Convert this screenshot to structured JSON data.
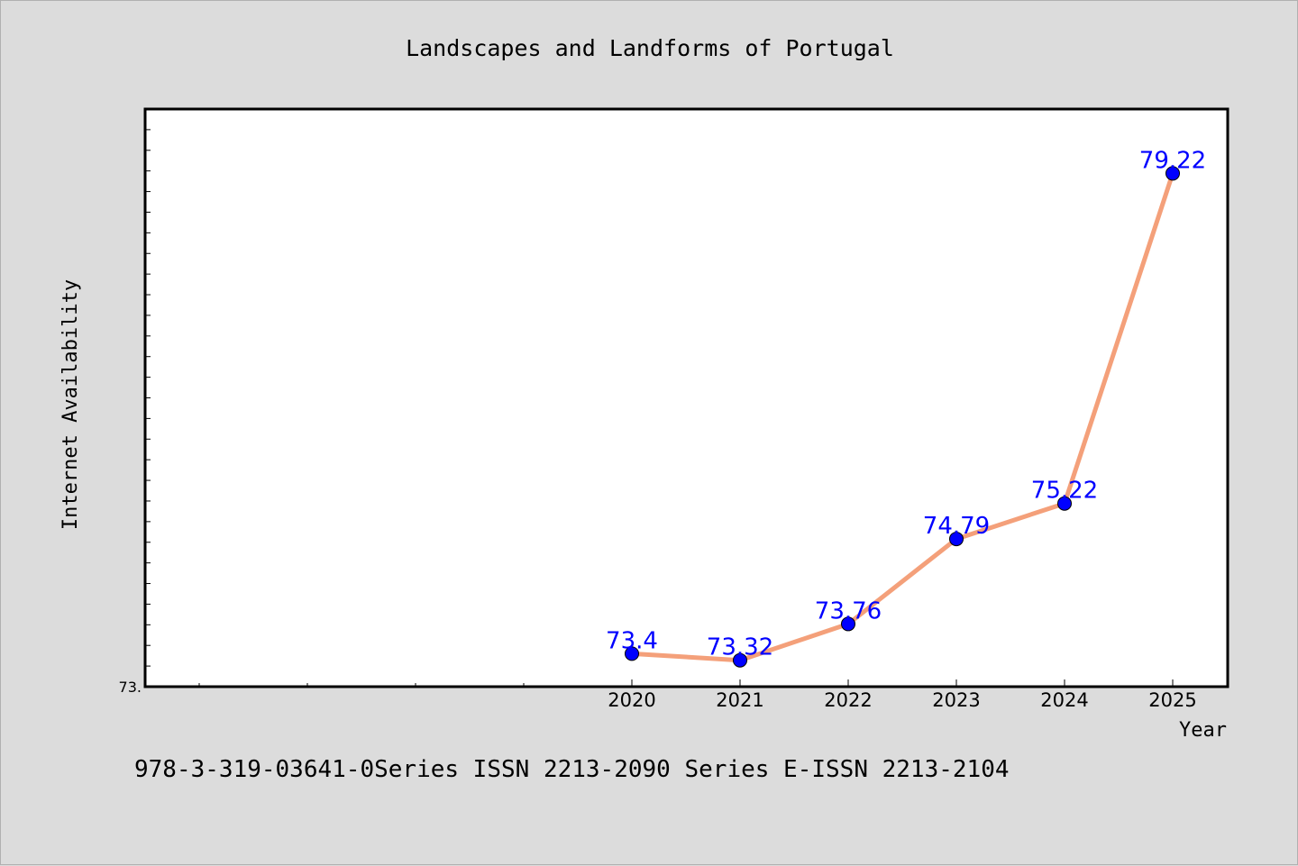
{
  "footer": "978-3-319-03641-0Series ISSN 2213-2090 Series E-ISSN 2213-2104",
  "chart_data": {
    "type": "line",
    "title": "Landscapes and Landforms of Portugal",
    "xlabel": "Year",
    "ylabel": "Internet Availability",
    "x": [
      "2020",
      "2021",
      "2022",
      "2023",
      "2024",
      "2025"
    ],
    "series": [
      {
        "values": [
          73.4,
          73.32,
          73.76,
          74.79,
          75.22,
          79.22
        ]
      }
    ],
    "data_labels": [
      "73.4",
      "73.32",
      "73.76",
      "74.79",
      "75.22",
      "79.22"
    ],
    "y_tick_labels": [
      "73."
    ],
    "ylim": [
      73.0,
      80.0
    ],
    "grid": false,
    "legend": "none",
    "colors": {
      "line": "#f4a07a",
      "marker": "#0000ff",
      "label": "#0000ff",
      "plot_bg": "#ffffff",
      "figure_bg": "#dcdcdc"
    }
  }
}
